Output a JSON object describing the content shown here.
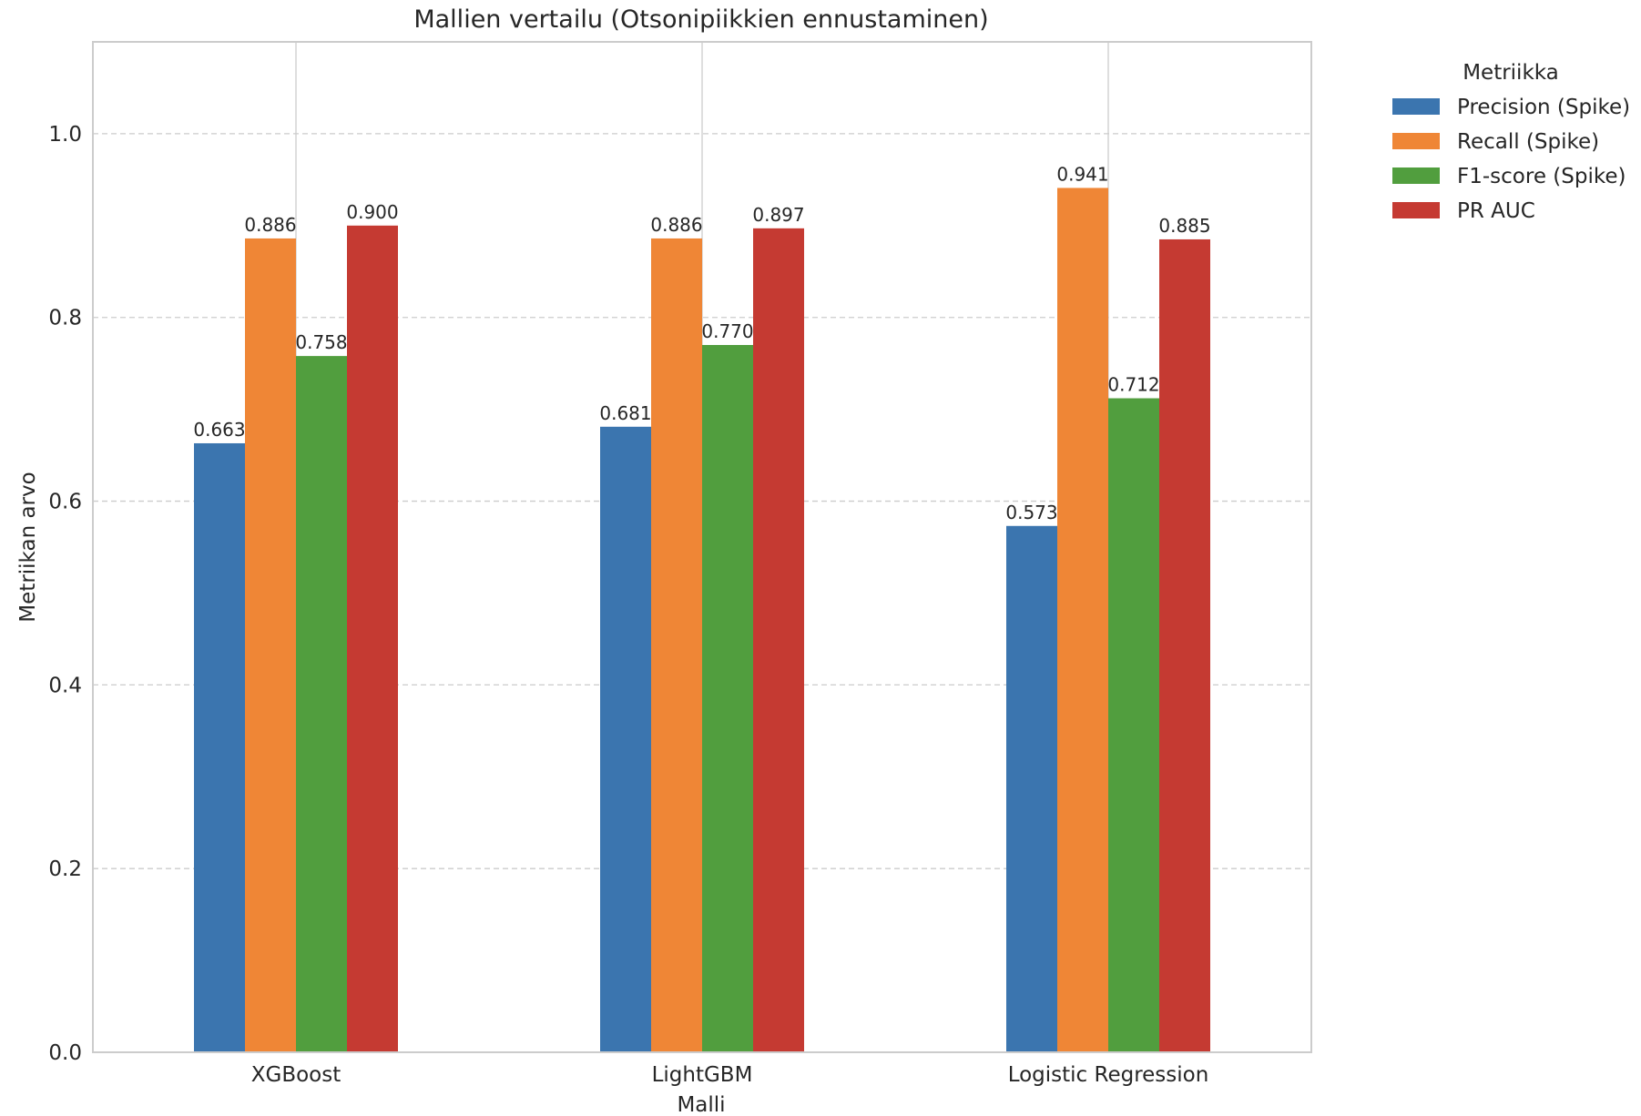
{
  "chart_data": {
    "type": "bar",
    "title": "Mallien vertailu (Otsonipiikkien ennustaminen)",
    "xlabel": "Malli",
    "ylabel": "Metriikan arvo",
    "categories": [
      "XGBoost",
      "LightGBM",
      "Logistic Regression"
    ],
    "series": [
      {
        "name": "Precision (Spike)",
        "color": "#3b75af",
        "values": [
          0.663,
          0.681,
          0.573
        ],
        "labels": [
          "0.663",
          "0.681",
          "0.573"
        ]
      },
      {
        "name": "Recall (Spike)",
        "color": "#ef8636",
        "values": [
          0.886,
          0.886,
          0.941
        ],
        "labels": [
          "0.886",
          "0.886",
          "0.941"
        ]
      },
      {
        "name": "F1-score (Spike)",
        "color": "#519e3e",
        "values": [
          0.758,
          0.77,
          0.712
        ],
        "labels": [
          "0.758",
          "0.770",
          "0.712"
        ]
      },
      {
        "name": "PR AUC",
        "color": "#c53a32",
        "values": [
          0.9,
          0.897,
          0.885
        ],
        "labels": [
          "0.900",
          "0.897",
          "0.885"
        ]
      }
    ],
    "ylim": [
      0,
      1.1
    ],
    "yticks": [
      0.0,
      0.2,
      0.4,
      0.6,
      0.8,
      1.0
    ],
    "ytick_labels": [
      "0.0",
      "0.2",
      "0.4",
      "0.6",
      "0.8",
      "1.0"
    ],
    "grid": true,
    "legend": {
      "title": "Metriikka",
      "placement": "outside-right-top"
    }
  }
}
